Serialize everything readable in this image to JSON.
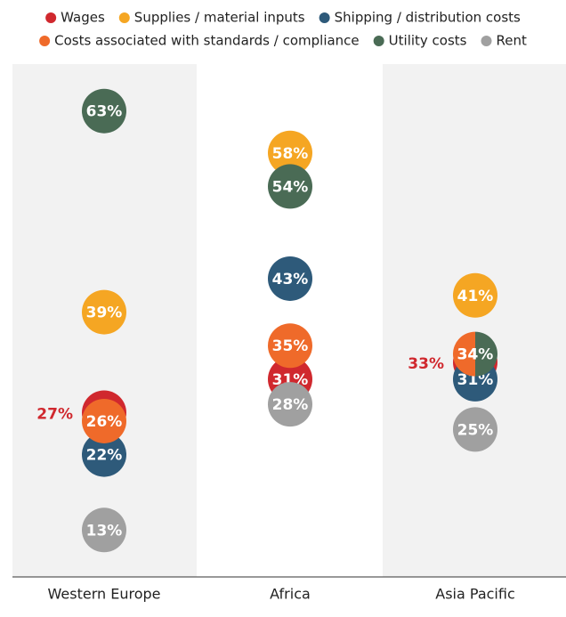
{
  "chart_data": {
    "type": "dot",
    "categories": [
      "Western Europe",
      "Africa",
      "Asia Pacific"
    ],
    "series": [
      {
        "name": "Wages",
        "color": "#d0282e",
        "values": [
          27,
          31,
          33
        ],
        "value_labels": [
          "27%",
          "31%",
          "33%"
        ]
      },
      {
        "name": "Supplies / material inputs",
        "color": "#f5a623",
        "values": [
          39,
          58,
          41
        ],
        "value_labels": [
          "39%",
          "58%",
          "41%"
        ]
      },
      {
        "name": "Shipping / distribution costs",
        "color": "#2e5a7a",
        "values": [
          22,
          43,
          31
        ],
        "value_labels": [
          "22%",
          "43%",
          "31%"
        ]
      },
      {
        "name": "Costs associated with standards / compliance",
        "color": "#ef6a2a",
        "values": [
          26,
          35,
          34
        ],
        "value_labels": [
          "26%",
          "35%",
          "34%"
        ]
      },
      {
        "name": "Utility costs",
        "color": "#4a6b55",
        "values": [
          63,
          54,
          34
        ],
        "value_labels": [
          "63%",
          "54%",
          "34%"
        ]
      },
      {
        "name": "Rent",
        "color": "#a0a0a0",
        "values": [
          13,
          28,
          25
        ],
        "value_labels": [
          "13%",
          "28%",
          "25%"
        ]
      }
    ],
    "ylim": [
      7.4,
      68.6
    ],
    "legend": "top"
  }
}
